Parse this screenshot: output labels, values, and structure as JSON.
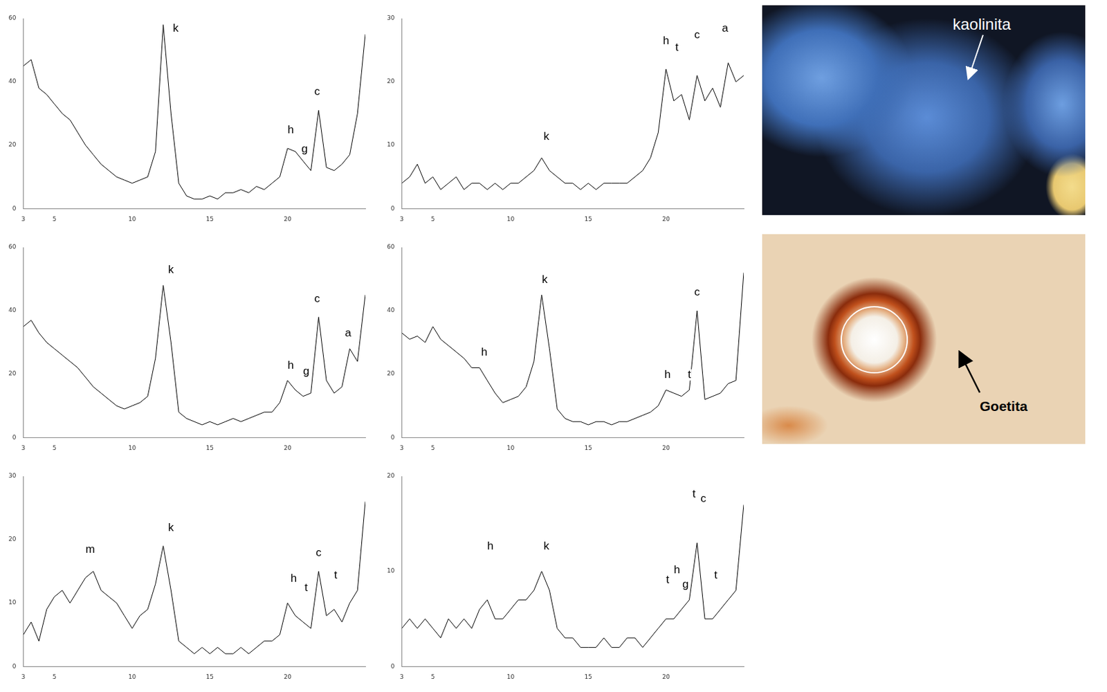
{
  "chart_data": [
    {
      "type": "line",
      "color": "#000000",
      "grid": false,
      "x": [
        3,
        3.5,
        4,
        4.5,
        5,
        5.5,
        6,
        6.5,
        7,
        7.5,
        8,
        8.5,
        9,
        9.5,
        10,
        10.5,
        11,
        11.5,
        12,
        12.5,
        13,
        13.5,
        14,
        14.5,
        15,
        15.5,
        16,
        16.5,
        17,
        17.5,
        18,
        18.5,
        19,
        19.5,
        20,
        20.5,
        21,
        21.5,
        22,
        22.5,
        23,
        23.5,
        24,
        24.5,
        25
      ],
      "values": [
        45,
        47,
        38,
        36,
        33,
        30,
        28,
        24,
        20,
        17,
        14,
        12,
        10,
        9,
        8,
        9,
        10,
        18,
        58,
        30,
        8,
        4,
        3,
        3,
        4,
        3,
        5,
        5,
        6,
        5,
        7,
        6,
        8,
        10,
        19,
        18,
        15,
        12,
        31,
        13,
        12,
        14,
        17,
        30,
        55
      ],
      "xlim": [
        3,
        25
      ],
      "xticks": [
        3,
        5,
        10,
        15,
        20
      ],
      "ylim": [
        0,
        60
      ],
      "yticks": [
        0,
        20,
        40,
        60
      ],
      "annotations": [
        {
          "x": 12.8,
          "y": 55,
          "text": "k"
        },
        {
          "x": 20.2,
          "y": 23,
          "text": "h"
        },
        {
          "x": 21.1,
          "y": 17,
          "text": "g"
        },
        {
          "x": 21.9,
          "y": 35,
          "text": "c"
        }
      ]
    },
    {
      "type": "line",
      "color": "#000000",
      "grid": false,
      "x": [
        3,
        3.5,
        4,
        4.5,
        5,
        5.5,
        6,
        6.5,
        7,
        7.5,
        8,
        8.5,
        9,
        9.5,
        10,
        10.5,
        11,
        11.5,
        12,
        12.5,
        13,
        13.5,
        14,
        14.5,
        15,
        15.5,
        16,
        16.5,
        17,
        17.5,
        18,
        18.5,
        19,
        19.5,
        20,
        20.5,
        21,
        21.5,
        22,
        22.5,
        23,
        23.5,
        24,
        24.5,
        25
      ],
      "values": [
        4,
        5,
        7,
        4,
        5,
        3,
        4,
        5,
        3,
        4,
        4,
        3,
        4,
        3,
        4,
        4,
        5,
        6,
        8,
        6,
        5,
        4,
        4,
        3,
        4,
        3,
        4,
        4,
        4,
        4,
        5,
        6,
        8,
        12,
        22,
        17,
        18,
        14,
        21,
        17,
        19,
        16,
        23,
        20,
        21
      ],
      "xlim": [
        3,
        25
      ],
      "xticks": [
        3,
        5,
        10,
        15,
        20
      ],
      "ylim": [
        0,
        30
      ],
      "yticks": [
        0,
        10,
        20,
        30
      ],
      "annotations": [
        {
          "x": 12.3,
          "y": 10.5,
          "text": "k"
        },
        {
          "x": 20.0,
          "y": 25.5,
          "text": "h"
        },
        {
          "x": 20.7,
          "y": 24.5,
          "text": "t"
        },
        {
          "x": 22.0,
          "y": 26.5,
          "text": "c"
        },
        {
          "x": 23.8,
          "y": 27.5,
          "text": "a"
        }
      ]
    },
    {
      "type": "line",
      "color": "#000000",
      "grid": false,
      "x": [
        3,
        3.5,
        4,
        4.5,
        5,
        5.5,
        6,
        6.5,
        7,
        7.5,
        8,
        8.5,
        9,
        9.5,
        10,
        10.5,
        11,
        11.5,
        12,
        12.5,
        13,
        13.5,
        14,
        14.5,
        15,
        15.5,
        16,
        16.5,
        17,
        17.5,
        18,
        18.5,
        19,
        19.5,
        20,
        20.5,
        21,
        21.5,
        22,
        22.5,
        23,
        23.5,
        24,
        24.5,
        25
      ],
      "values": [
        35,
        37,
        33,
        30,
        28,
        26,
        24,
        22,
        19,
        16,
        14,
        12,
        10,
        9,
        10,
        11,
        13,
        25,
        48,
        30,
        8,
        6,
        5,
        4,
        5,
        4,
        5,
        6,
        5,
        6,
        7,
        8,
        8,
        11,
        18,
        15,
        13,
        14,
        38,
        18,
        14,
        16,
        28,
        24,
        45
      ],
      "xlim": [
        3,
        25
      ],
      "xticks": [
        3,
        5,
        10,
        15,
        20
      ],
      "ylim": [
        0,
        60
      ],
      "yticks": [
        0,
        20,
        40,
        60
      ],
      "annotations": [
        {
          "x": 12.5,
          "y": 51,
          "text": "k"
        },
        {
          "x": 20.2,
          "y": 21,
          "text": "h"
        },
        {
          "x": 21.2,
          "y": 19,
          "text": "g"
        },
        {
          "x": 21.9,
          "y": 42,
          "text": "c"
        },
        {
          "x": 23.9,
          "y": 31,
          "text": "a"
        }
      ]
    },
    {
      "type": "line",
      "color": "#000000",
      "grid": false,
      "x": [
        3,
        3.5,
        4,
        4.5,
        5,
        5.5,
        6,
        6.5,
        7,
        7.5,
        8,
        8.5,
        9,
        9.5,
        10,
        10.5,
        11,
        11.5,
        12,
        12.5,
        13,
        13.5,
        14,
        14.5,
        15,
        15.5,
        16,
        16.5,
        17,
        17.5,
        18,
        18.5,
        19,
        19.5,
        20,
        20.5,
        21,
        21.5,
        22,
        22.5,
        23,
        23.5,
        24,
        24.5,
        25
      ],
      "values": [
        33,
        31,
        32,
        30,
        35,
        31,
        29,
        27,
        25,
        22,
        22,
        18,
        14,
        11,
        12,
        13,
        16,
        24,
        45,
        28,
        9,
        6,
        5,
        5,
        4,
        5,
        5,
        4,
        5,
        5,
        6,
        7,
        8,
        10,
        15,
        14,
        13,
        15,
        40,
        12,
        13,
        14,
        17,
        18,
        52
      ],
      "xlim": [
        3,
        25
      ],
      "xticks": [
        3,
        5,
        10,
        15,
        20
      ],
      "ylim": [
        0,
        60
      ],
      "yticks": [
        0,
        20,
        40,
        60
      ],
      "annotations": [
        {
          "x": 8.3,
          "y": 25,
          "text": "h"
        },
        {
          "x": 12.2,
          "y": 48,
          "text": "k"
        },
        {
          "x": 20.1,
          "y": 18,
          "text": "h"
        },
        {
          "x": 21.5,
          "y": 18,
          "text": "t"
        },
        {
          "x": 22.0,
          "y": 44,
          "text": "c"
        }
      ]
    },
    {
      "type": "line",
      "color": "#000000",
      "grid": false,
      "x": [
        3,
        3.5,
        4,
        4.5,
        5,
        5.5,
        6,
        6.5,
        7,
        7.5,
        8,
        8.5,
        9,
        9.5,
        10,
        10.5,
        11,
        11.5,
        12,
        12.5,
        13,
        13.5,
        14,
        14.5,
        15,
        15.5,
        16,
        16.5,
        17,
        17.5,
        18,
        18.5,
        19,
        19.5,
        20,
        20.5,
        21,
        21.5,
        22,
        22.5,
        23,
        23.5,
        24,
        24.5,
        25
      ],
      "values": [
        5,
        7,
        4,
        9,
        11,
        12,
        10,
        12,
        14,
        15,
        12,
        11,
        10,
        8,
        6,
        8,
        9,
        13,
        19,
        12,
        4,
        3,
        2,
        3,
        2,
        3,
        2,
        2,
        3,
        2,
        3,
        4,
        4,
        5,
        10,
        8,
        7,
        6,
        15,
        8,
        9,
        7,
        10,
        12,
        26
      ],
      "xlim": [
        3,
        25
      ],
      "xticks": [
        3,
        5,
        10,
        15,
        20
      ],
      "ylim": [
        0,
        30
      ],
      "yticks": [
        0,
        10,
        20,
        30
      ],
      "annotations": [
        {
          "x": 7.3,
          "y": 17.5,
          "text": "m"
        },
        {
          "x": 12.5,
          "y": 21,
          "text": "k"
        },
        {
          "x": 20.4,
          "y": 13,
          "text": "h"
        },
        {
          "x": 21.2,
          "y": 11.5,
          "text": "t"
        },
        {
          "x": 22.0,
          "y": 17,
          "text": "c"
        },
        {
          "x": 23.1,
          "y": 13.5,
          "text": "t"
        }
      ]
    },
    {
      "type": "line",
      "color": "#000000",
      "grid": false,
      "x": [
        3,
        3.5,
        4,
        4.5,
        5,
        5.5,
        6,
        6.5,
        7,
        7.5,
        8,
        8.5,
        9,
        9.5,
        10,
        10.5,
        11,
        11.5,
        12,
        12.5,
        13,
        13.5,
        14,
        14.5,
        15,
        15.5,
        16,
        16.5,
        17,
        17.5,
        18,
        18.5,
        19,
        19.5,
        20,
        20.5,
        21,
        21.5,
        22,
        22.5,
        23,
        23.5,
        24,
        24.5,
        25
      ],
      "values": [
        4,
        5,
        4,
        5,
        4,
        3,
        5,
        4,
        5,
        4,
        6,
        7,
        5,
        5,
        6,
        7,
        7,
        8,
        10,
        8,
        4,
        3,
        3,
        2,
        2,
        2,
        3,
        2,
        2,
        3,
        3,
        2,
        3,
        4,
        5,
        5,
        6,
        7,
        13,
        5,
        5,
        6,
        7,
        8,
        17
      ],
      "xlim": [
        3,
        25
      ],
      "xticks": [
        3,
        5,
        10,
        15,
        20
      ],
      "ylim": [
        0,
        20
      ],
      "yticks": [
        0,
        10,
        20
      ],
      "annotations": [
        {
          "x": 8.7,
          "y": 12,
          "text": "h"
        },
        {
          "x": 12.3,
          "y": 12,
          "text": "k"
        },
        {
          "x": 20.1,
          "y": 8.5,
          "text": "t"
        },
        {
          "x": 20.7,
          "y": 9.5,
          "text": "h"
        },
        {
          "x": 21.25,
          "y": 8,
          "text": "g"
        },
        {
          "x": 21.8,
          "y": 17.5,
          "text": "t"
        },
        {
          "x": 22.4,
          "y": 17,
          "text": "c"
        },
        {
          "x": 23.2,
          "y": 9,
          "text": "t"
        }
      ]
    }
  ],
  "photos": [
    {
      "label": "kaolinita"
    },
    {
      "label": "Goetita"
    }
  ]
}
